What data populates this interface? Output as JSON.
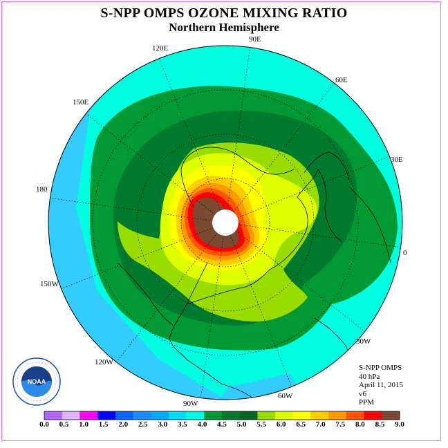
{
  "title": "S-NPP OMPS OZONE MIXING RATIO",
  "subtitle": "Northern Hemisphere",
  "longitude_labels": [
    "90E",
    "60E",
    "30E",
    "0",
    "30W",
    "60W",
    "90W",
    "120W",
    "150W",
    "180",
    "150E",
    "120E"
  ],
  "info": {
    "instrument": "S-NPP OMPS",
    "level": "40 hPa",
    "date": "April 11, 2015",
    "version": "v6",
    "units": "PPM"
  },
  "logo": {
    "text": "NOAA",
    "ring_text": "NATIONAL OCEANIC AND ATMOSPHERIC ADMINISTRATION - U.S. DEPARTMENT OF COMMERCE"
  },
  "colorbar": {
    "ticks": [
      "0.0",
      "0.5",
      "1.0",
      "1.5",
      "2.0",
      "2.5",
      "3.0",
      "3.5",
      "4.0",
      "4.5",
      "5.0",
      "5.5",
      "6.0",
      "6.5",
      "7.0",
      "7.5",
      "8.0",
      "8.5",
      "9.0"
    ],
    "colors": [
      "#b266ff",
      "#e0b3ff",
      "#ff00ff",
      "#0000ff",
      "#0066ff",
      "#1a8cff",
      "#00aaff",
      "#00ddff",
      "#00ffe0",
      "#009933",
      "#007a2e",
      "#006622",
      "#99dd00",
      "#ddff00",
      "#ffff00",
      "#ffcc00",
      "#ff9900",
      "#ff5500",
      "#ff0000",
      "#7a4a33"
    ]
  }
}
